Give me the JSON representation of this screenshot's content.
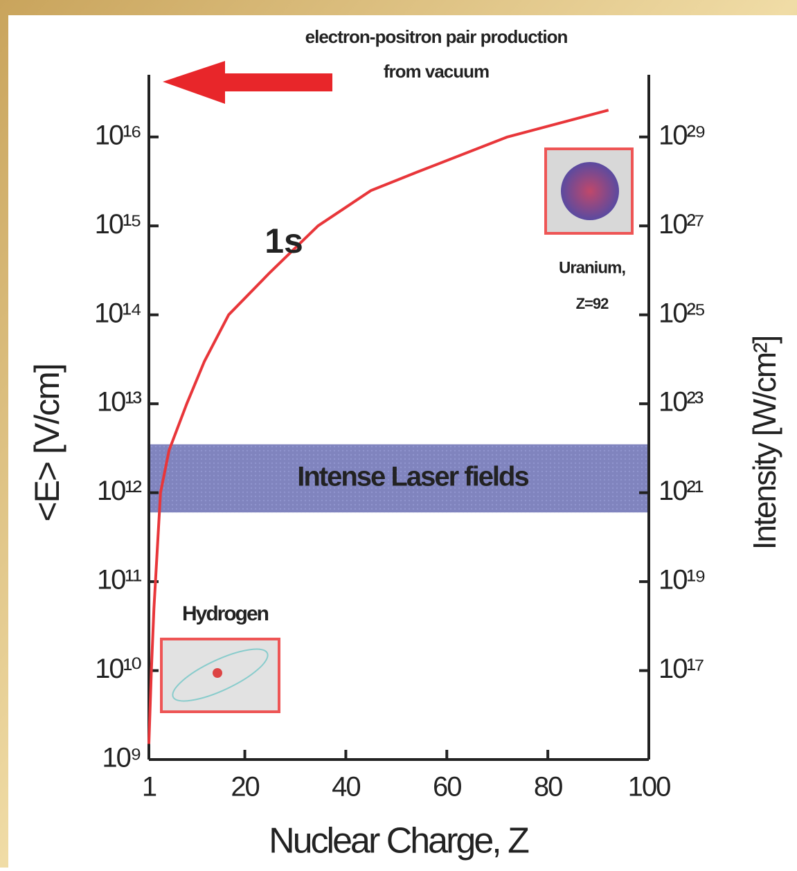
{
  "chart_data": {
    "type": "line",
    "x_label": "Nuclear Charge, Z",
    "y_label": "<E> [V/cm]",
    "y2_label": "Intensity [W/cm²]",
    "x": [
      1,
      1.5,
      2,
      3.3,
      5,
      8.5,
      12,
      16.8,
      25,
      34.5,
      45,
      54,
      72,
      92
    ],
    "values": [
      1500000000.0,
      10000000000.0,
      50000000000.0,
      1000000000000.0,
      3000000000000.0,
      10000000000000.0,
      30000000000000.0,
      100000000000000.0,
      300000000000000.0,
      1000000000000000.0,
      2500000000000000.0,
      4000000000000000.0,
      1e+16,
      2e+16
    ],
    "color": "#e8363a",
    "xlim": [
      1,
      100
    ],
    "xticks": [
      1,
      20,
      40,
      60,
      80,
      100
    ],
    "ylim": [
      1000000000.0,
      5e+16
    ],
    "ylog": true,
    "yticks": [
      {
        "value": 1000000000.0,
        "label": "10⁹"
      },
      {
        "value": 10000000000.0,
        "label": "10¹⁰"
      },
      {
        "value": 100000000000.0,
        "label": "10¹¹"
      },
      {
        "value": 1000000000000.0,
        "label": "10¹²"
      },
      {
        "value": 10000000000000.0,
        "label": "10¹³"
      },
      {
        "value": 100000000000000.0,
        "label": "10¹⁴"
      },
      {
        "value": 1000000000000000.0,
        "label": "10¹⁵"
      },
      {
        "value": 1e+16,
        "label": "10¹⁶"
      }
    ],
    "y2lim": [
      1000000000000000.0,
      2.5e+30
    ],
    "y2log": true,
    "y2ticks": [
      {
        "value": 1e+17,
        "label": "10¹⁷"
      },
      {
        "value": 1e+19,
        "label": "10¹⁹"
      },
      {
        "value": 1e+21,
        "label": "10²¹"
      },
      {
        "value": 1e+23,
        "label": "10²³"
      },
      {
        "value": 1e+25,
        "label": "10²⁵"
      },
      {
        "value": 1e+27,
        "label": "10²⁷"
      },
      {
        "value": 1e+29,
        "label": "10²⁹"
      }
    ],
    "band": {
      "range": [
        600000000000.0,
        3500000000000.0
      ],
      "label": "Intense Laser fields",
      "color": "#6a6fb3"
    },
    "annotations": {
      "curve_label": "1s",
      "top_note": [
        "electron-positron pair production",
        "from vacuum"
      ],
      "hydrogen": "Hydrogen",
      "uranium": [
        "Uranium,",
        "Z=92"
      ]
    }
  }
}
